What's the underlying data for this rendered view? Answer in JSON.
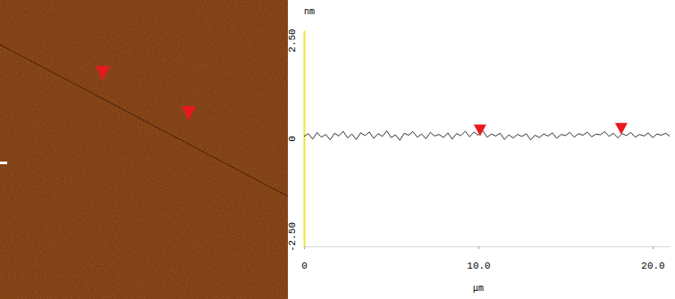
{
  "chart_data": {
    "type": "line",
    "x_label": "μm",
    "y_label": "nm",
    "x": [
      0,
      0.25,
      0.5,
      0.75,
      1,
      1.25,
      1.5,
      1.75,
      2,
      2.25,
      2.5,
      2.75,
      3,
      3.25,
      3.5,
      3.75,
      4,
      4.25,
      4.5,
      4.75,
      5,
      5.25,
      5.5,
      5.75,
      6,
      6.25,
      6.5,
      6.75,
      7,
      7.25,
      7.5,
      7.75,
      8,
      8.25,
      8.5,
      8.75,
      9,
      9.25,
      9.5,
      9.75,
      10,
      10.25,
      10.5,
      10.75,
      11,
      11.25,
      11.5,
      11.75,
      12,
      12.25,
      12.5,
      12.75,
      13,
      13.25,
      13.5,
      13.75,
      14,
      14.25,
      14.5,
      14.75,
      15,
      15.25,
      15.5,
      15.75,
      16,
      16.25,
      16.5,
      16.75,
      17,
      17.25,
      17.5,
      17.75,
      18,
      18.25,
      18.5,
      18.75,
      19,
      19.25,
      19.5,
      19.75,
      20,
      20.25,
      20.5,
      20.75,
      21
    ],
    "values": [
      0.05,
      0.12,
      -0.02,
      0.15,
      0.03,
      0.1,
      -0.04,
      0.13,
      0.06,
      0.18,
      0.01,
      0.11,
      -0.03,
      0.14,
      0.07,
      0.16,
      0.0,
      0.12,
      0.05,
      0.19,
      0.02,
      0.09,
      -0.05,
      0.13,
      0.08,
      0.17,
      0.03,
      0.11,
      -0.01,
      0.15,
      0.06,
      0.1,
      0.02,
      0.14,
      -0.02,
      0.12,
      0.07,
      0.18,
      0.04,
      0.16,
      0.08,
      0.2,
      0.03,
      0.11,
      0.06,
      0.13,
      -0.03,
      0.09,
      0.01,
      0.1,
      0.05,
      0.12,
      -0.04,
      0.08,
      0.02,
      0.11,
      0.06,
      0.14,
      0.0,
      0.1,
      0.07,
      0.15,
      0.03,
      0.12,
      0.08,
      0.16,
      0.04,
      0.11,
      0.09,
      0.17,
      0.05,
      0.13,
      0.01,
      0.12,
      0.07,
      0.15,
      0.03,
      0.1,
      0.06,
      0.14,
      0.02,
      0.11,
      0.08,
      0.13,
      0.05
    ],
    "color": "#000000",
    "xlim": [
      0,
      21
    ],
    "ylim": [
      -2.75,
      2.75
    ],
    "xticks": [
      0,
      {
        "value": 10,
        "label": "10.0"
      },
      {
        "value": 20,
        "label": "20.0"
      }
    ],
    "yticks": [
      {
        "value": -2.5,
        "label": "-2.50"
      },
      0,
      {
        "value": 2.5,
        "label": "2.50"
      }
    ],
    "cursor_x": [
      10.1,
      18.2
    ]
  }
}
